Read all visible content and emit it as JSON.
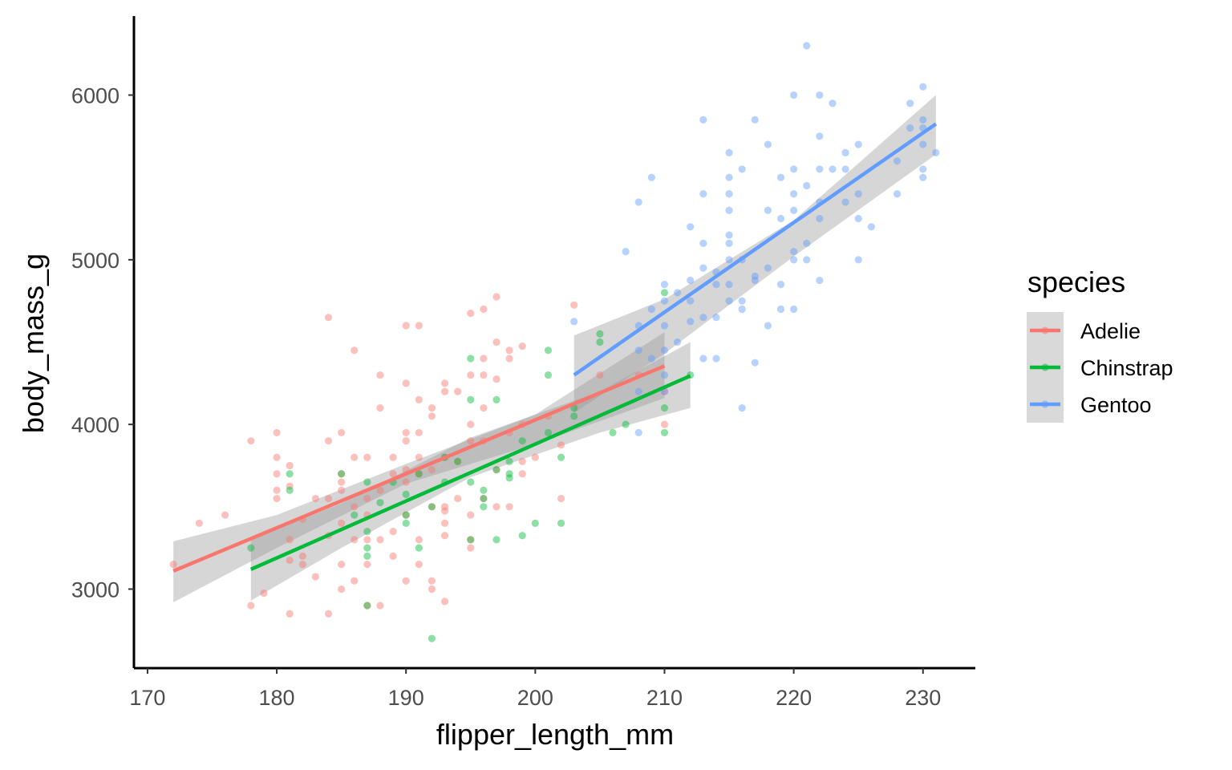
{
  "chart_data": {
    "type": "scatter",
    "title": "",
    "xlabel": "flipper_length_mm",
    "ylabel": "body_mass_g",
    "xlim": [
      168.95,
      234.05
    ],
    "ylim": [
      2520,
      6480
    ],
    "x_ticks": [
      170,
      180,
      190,
      200,
      210,
      220,
      230
    ],
    "y_ticks": [
      3000,
      4000,
      5000,
      6000
    ],
    "grid": false,
    "legend": {
      "title": "species",
      "position": "right"
    },
    "smoothing": "linear regression with grey confidence band",
    "series": [
      {
        "name": "Adelie",
        "color": "#F8766D",
        "fit": {
          "x": [
            172,
            210
          ],
          "y": [
            3110,
            4355
          ]
        },
        "band": {
          "x": [
            172,
            180,
            190,
            200,
            210
          ],
          "upper": [
            3290,
            3450,
            3760,
            4060,
            4560
          ],
          "lower": [
            2920,
            3250,
            3640,
            3880,
            4160
          ]
        },
        "points": [
          [
            172,
            3150
          ],
          [
            174,
            3400
          ],
          [
            176,
            3450
          ],
          [
            178,
            3900
          ],
          [
            178,
            2900
          ],
          [
            179,
            2975
          ],
          [
            180,
            3950
          ],
          [
            180,
            3800
          ],
          [
            180,
            3700
          ],
          [
            180,
            3600
          ],
          [
            180,
            3550
          ],
          [
            181,
            3750
          ],
          [
            181,
            3625
          ],
          [
            181,
            3300
          ],
          [
            181,
            3175
          ],
          [
            181,
            2850
          ],
          [
            182,
            3425
          ],
          [
            182,
            3200
          ],
          [
            182,
            3150
          ],
          [
            183,
            3550
          ],
          [
            183,
            3075
          ],
          [
            184,
            4650
          ],
          [
            184,
            3900
          ],
          [
            184,
            3550
          ],
          [
            184,
            3325
          ],
          [
            184,
            2850
          ],
          [
            185,
            3950
          ],
          [
            185,
            3700
          ],
          [
            185,
            3650
          ],
          [
            185,
            3600
          ],
          [
            185,
            3400
          ],
          [
            185,
            3150
          ],
          [
            185,
            3000
          ],
          [
            186,
            4450
          ],
          [
            186,
            3800
          ],
          [
            186,
            3500
          ],
          [
            186,
            3300
          ],
          [
            186,
            3050
          ],
          [
            187,
            3800
          ],
          [
            187,
            3550
          ],
          [
            187,
            3450
          ],
          [
            187,
            3300
          ],
          [
            187,
            3150
          ],
          [
            187,
            2900
          ],
          [
            188,
            4300
          ],
          [
            188,
            4100
          ],
          [
            188,
            3600
          ],
          [
            188,
            3300
          ],
          [
            188,
            2900
          ],
          [
            189,
            3800
          ],
          [
            189,
            3700
          ],
          [
            189,
            3350
          ],
          [
            189,
            3200
          ],
          [
            190,
            4600
          ],
          [
            190,
            4250
          ],
          [
            190,
            3950
          ],
          [
            190,
            3900
          ],
          [
            190,
            3725
          ],
          [
            190,
            3650
          ],
          [
            190,
            3450
          ],
          [
            190,
            3050
          ],
          [
            191,
            4600
          ],
          [
            191,
            4150
          ],
          [
            191,
            3950
          ],
          [
            191,
            3800
          ],
          [
            191,
            3700
          ],
          [
            191,
            3300
          ],
          [
            191,
            3150
          ],
          [
            192,
            4100
          ],
          [
            192,
            4050
          ],
          [
            192,
            3725
          ],
          [
            192,
            3500
          ],
          [
            192,
            3050
          ],
          [
            192,
            3000
          ],
          [
            193,
            4250
          ],
          [
            193,
            4200
          ],
          [
            193,
            3800
          ],
          [
            193,
            3500
          ],
          [
            193,
            3475
          ],
          [
            193,
            3400
          ],
          [
            193,
            3325
          ],
          [
            193,
            2925
          ],
          [
            194,
            4200
          ],
          [
            194,
            3775
          ],
          [
            194,
            3550
          ],
          [
            195,
            4675
          ],
          [
            195,
            4300
          ],
          [
            195,
            4000
          ],
          [
            195,
            3900
          ],
          [
            195,
            3450
          ],
          [
            195,
            3300
          ],
          [
            195,
            3250
          ],
          [
            196,
            4700
          ],
          [
            196,
            4400
          ],
          [
            196,
            4300
          ],
          [
            196,
            4100
          ],
          [
            196,
            3900
          ],
          [
            196,
            3550
          ],
          [
            197,
            4775
          ],
          [
            197,
            4500
          ],
          [
            197,
            4275
          ],
          [
            197,
            3725
          ],
          [
            197,
            3500
          ],
          [
            198,
            4450
          ],
          [
            198,
            4400
          ],
          [
            198,
            3950
          ],
          [
            198,
            3500
          ],
          [
            199,
            4475
          ],
          [
            199,
            4000
          ],
          [
            199,
            3775
          ],
          [
            199,
            3700
          ],
          [
            200,
            3800
          ],
          [
            201,
            4050
          ],
          [
            202,
            3875
          ],
          [
            202,
            3550
          ],
          [
            203,
            4725
          ],
          [
            205,
            4300
          ],
          [
            210,
            4000
          ],
          [
            210,
            4200
          ],
          [
            208,
            4300
          ]
        ]
      },
      {
        "name": "Chinstrap",
        "color": "#00BA38",
        "fit": {
          "x": [
            178,
            212
          ],
          "y": [
            3120,
            4295
          ]
        },
        "band": {
          "x": [
            178,
            185,
            195,
            205,
            212
          ],
          "upper": [
            3300,
            3520,
            3920,
            4200,
            4500
          ],
          "lower": [
            2930,
            3250,
            3680,
            3950,
            4100
          ]
        },
        "points": [
          [
            178,
            3250
          ],
          [
            181,
            3700
          ],
          [
            181,
            3600
          ],
          [
            185,
            3700
          ],
          [
            186,
            3450
          ],
          [
            187,
            3650
          ],
          [
            187,
            3350
          ],
          [
            187,
            3250
          ],
          [
            187,
            3200
          ],
          [
            187,
            2900
          ],
          [
            188,
            3525
          ],
          [
            189,
            3650
          ],
          [
            190,
            3575
          ],
          [
            190,
            3450
          ],
          [
            190,
            3400
          ],
          [
            191,
            3700
          ],
          [
            191,
            3250
          ],
          [
            192,
            3500
          ],
          [
            192,
            2700
          ],
          [
            193,
            3800
          ],
          [
            193,
            3650
          ],
          [
            194,
            3775
          ],
          [
            195,
            4400
          ],
          [
            195,
            4150
          ],
          [
            195,
            3650
          ],
          [
            195,
            3300
          ],
          [
            196,
            3600
          ],
          [
            196,
            3550
          ],
          [
            196,
            3500
          ],
          [
            197,
            4150
          ],
          [
            197,
            3725
          ],
          [
            197,
            3300
          ],
          [
            198,
            3775
          ],
          [
            198,
            3700
          ],
          [
            198,
            3675
          ],
          [
            199,
            3900
          ],
          [
            199,
            3325
          ],
          [
            200,
            3400
          ],
          [
            201,
            4450
          ],
          [
            201,
            4300
          ],
          [
            201,
            3950
          ],
          [
            202,
            3800
          ],
          [
            202,
            3400
          ],
          [
            203,
            4100
          ],
          [
            203,
            4050
          ],
          [
            205,
            4550
          ],
          [
            205,
            4500
          ],
          [
            206,
            3950
          ],
          [
            207,
            4000
          ],
          [
            210,
            4800
          ],
          [
            210,
            4100
          ],
          [
            210,
            3950
          ],
          [
            212,
            4300
          ]
        ]
      },
      {
        "name": "Gentoo",
        "color": "#619CFF",
        "fit": {
          "x": [
            203,
            231
          ],
          "y": [
            4300,
            5825
          ]
        },
        "band": {
          "x": [
            203,
            210,
            220,
            231
          ],
          "upper": [
            4540,
            4760,
            5240,
            6000
          ],
          "lower": [
            4070,
            4430,
            5020,
            5640
          ]
        },
        "points": [
          [
            203,
            4625
          ],
          [
            207,
            5050
          ],
          [
            208,
            5350
          ],
          [
            208,
            4600
          ],
          [
            208,
            4450
          ],
          [
            208,
            4200
          ],
          [
            208,
            3950
          ],
          [
            209,
            5500
          ],
          [
            209,
            4700
          ],
          [
            209,
            4400
          ],
          [
            210,
            4850
          ],
          [
            210,
            4750
          ],
          [
            210,
            4600
          ],
          [
            210,
            4450
          ],
          [
            210,
            4300
          ],
          [
            210,
            4200
          ],
          [
            211,
            4800
          ],
          [
            211,
            4500
          ],
          [
            212,
            5200
          ],
          [
            212,
            4875
          ],
          [
            212,
            4750
          ],
          [
            212,
            4625
          ],
          [
            213,
            5850
          ],
          [
            213,
            5400
          ],
          [
            213,
            5100
          ],
          [
            213,
            4950
          ],
          [
            213,
            4650
          ],
          [
            213,
            4400
          ],
          [
            214,
            4925
          ],
          [
            214,
            4850
          ],
          [
            214,
            4650
          ],
          [
            214,
            4400
          ],
          [
            215,
            5650
          ],
          [
            215,
            5500
          ],
          [
            215,
            5400
          ],
          [
            215,
            5300
          ],
          [
            215,
            5150
          ],
          [
            215,
            5100
          ],
          [
            215,
            5000
          ],
          [
            215,
            4850
          ],
          [
            215,
            4750
          ],
          [
            216,
            5550
          ],
          [
            216,
            5000
          ],
          [
            216,
            4750
          ],
          [
            216,
            4700
          ],
          [
            216,
            4100
          ],
          [
            217,
            5850
          ],
          [
            217,
            4900
          ],
          [
            217,
            4875
          ],
          [
            217,
            4375
          ],
          [
            218,
            5700
          ],
          [
            218,
            5300
          ],
          [
            218,
            4950
          ],
          [
            218,
            4600
          ],
          [
            219,
            5500
          ],
          [
            219,
            5250
          ],
          [
            219,
            4850
          ],
          [
            219,
            4700
          ],
          [
            220,
            6000
          ],
          [
            220,
            5550
          ],
          [
            220,
            5400
          ],
          [
            220,
            5300
          ],
          [
            220,
            5050
          ],
          [
            220,
            5000
          ],
          [
            220,
            4700
          ],
          [
            221,
            6300
          ],
          [
            221,
            5450
          ],
          [
            221,
            5100
          ],
          [
            221,
            5000
          ],
          [
            222,
            6000
          ],
          [
            222,
            5750
          ],
          [
            222,
            5550
          ],
          [
            222,
            5350
          ],
          [
            222,
            5250
          ],
          [
            222,
            4875
          ],
          [
            223,
            5950
          ],
          [
            223,
            5550
          ],
          [
            224,
            5650
          ],
          [
            224,
            5550
          ],
          [
            224,
            5350
          ],
          [
            225,
            5700
          ],
          [
            225,
            5400
          ],
          [
            225,
            5250
          ],
          [
            225,
            5000
          ],
          [
            226,
            5200
          ],
          [
            228,
            5600
          ],
          [
            228,
            5400
          ],
          [
            229,
            5950
          ],
          [
            229,
            5800
          ],
          [
            230,
            6050
          ],
          [
            230,
            5850
          ],
          [
            230,
            5800
          ],
          [
            230,
            5700
          ],
          [
            230,
            5550
          ],
          [
            230,
            5500
          ],
          [
            231,
            5650
          ]
        ]
      }
    ]
  }
}
